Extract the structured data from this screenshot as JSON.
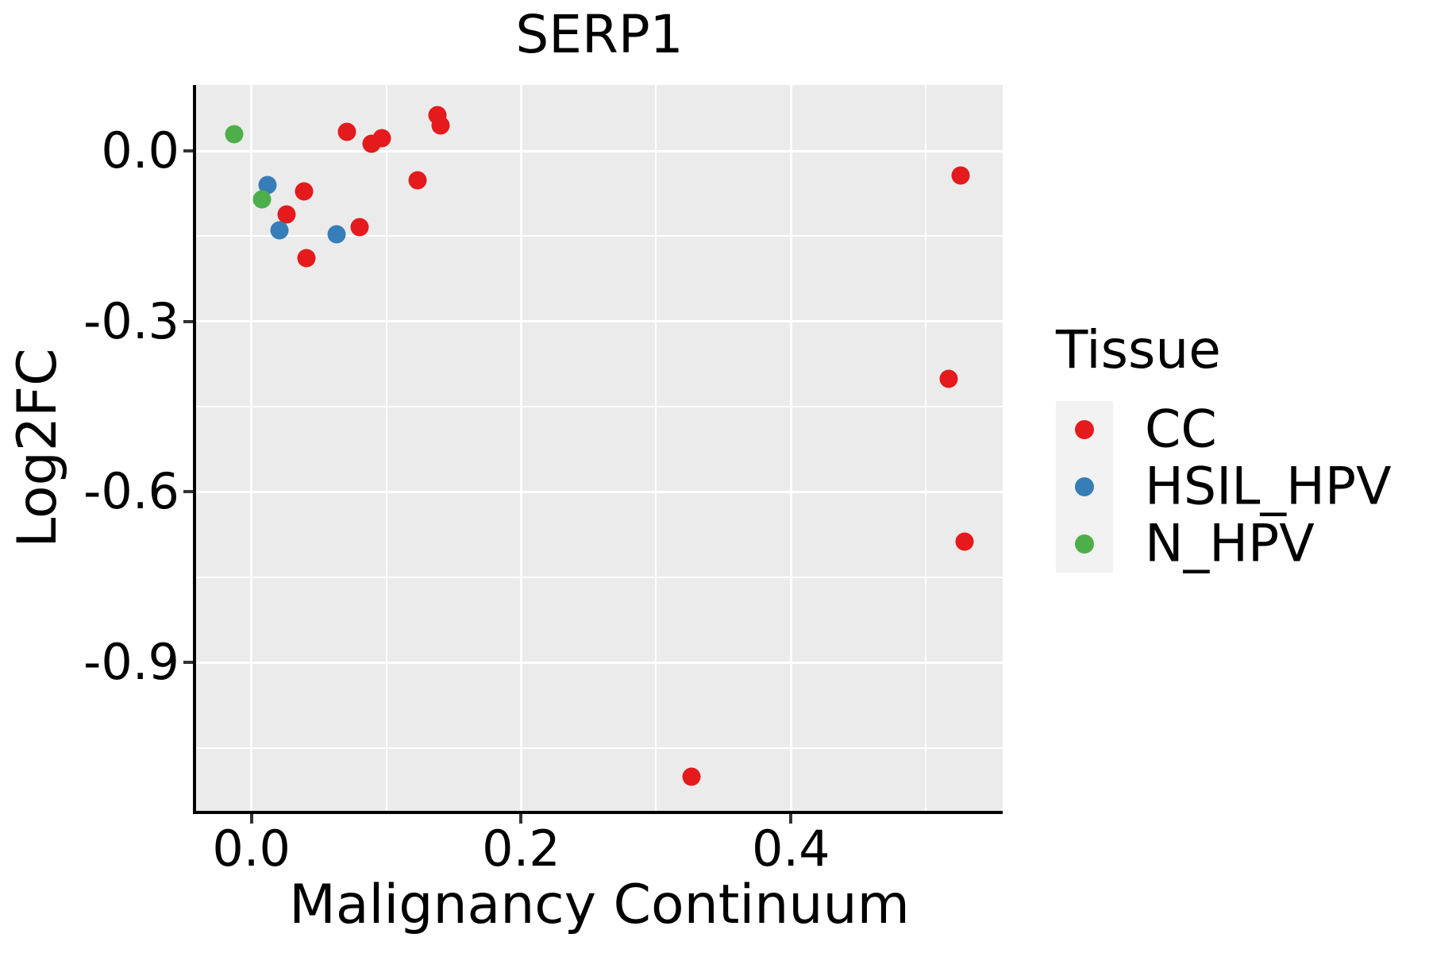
{
  "title": "SERP1",
  "axes": {
    "x": {
      "label": "Malignancy Continuum",
      "ticks": [
        0.0,
        0.2,
        0.4
      ],
      "tick_labels": [
        "0.0",
        "0.2",
        "0.4"
      ],
      "minor_ticks": [
        0.1,
        0.3,
        0.5
      ],
      "range": [
        -0.041,
        0.557
      ]
    },
    "y": {
      "label": "Log2FC",
      "ticks": [
        0.0,
        -0.3,
        -0.6,
        -0.9
      ],
      "tick_labels": [
        "0.0",
        "-0.3",
        "-0.6",
        "-0.9"
      ],
      "minor_ticks": [
        -0.15,
        -0.45,
        -0.75,
        -1.05
      ],
      "range": [
        -1.161,
        0.116
      ]
    }
  },
  "legend": {
    "title": "Tissue",
    "items": [
      {
        "label": "CC",
        "color": "#E41A1C"
      },
      {
        "label": "HSIL_HPV",
        "color": "#377EB8"
      },
      {
        "label": "N_HPV",
        "color": "#4DAF4A"
      }
    ]
  },
  "colors": {
    "panel_bg": "#EBEBEB",
    "grid": "#FFFFFF",
    "legend_key_bg": "#F2F2F2",
    "axis_line": "#000000",
    "tick": "#333333",
    "cc_red": "#E41A1C",
    "hsil_blue": "#377EB8",
    "nhpv_green": "#4DAF4A"
  },
  "chart_data": {
    "type": "scatter",
    "title": "SERP1",
    "xlabel": "Malignancy Continuum",
    "ylabel": "Log2FC",
    "xlim": [
      -0.041,
      0.557
    ],
    "ylim": [
      -1.161,
      0.116
    ],
    "grid": "major-minor-white-on-gray",
    "legend_position": "right",
    "legend_title": "Tissue",
    "series": [
      {
        "name": "CC",
        "color": "#E41A1C",
        "points": [
          [
            0.071,
            0.034
          ],
          [
            0.089,
            0.013
          ],
          [
            0.097,
            0.022
          ],
          [
            0.138,
            0.063
          ],
          [
            0.14,
            0.045
          ],
          [
            0.123,
            -0.052
          ],
          [
            0.039,
            -0.071
          ],
          [
            0.026,
            -0.112
          ],
          [
            0.08,
            -0.134
          ],
          [
            0.041,
            -0.189
          ],
          [
            0.526,
            -0.043
          ],
          [
            0.517,
            -0.401
          ],
          [
            0.529,
            -0.688
          ],
          [
            0.326,
            -1.101
          ]
        ]
      },
      {
        "name": "HSIL_HPV",
        "color": "#377EB8",
        "points": [
          [
            0.012,
            -0.06
          ],
          [
            0.021,
            -0.139
          ],
          [
            0.063,
            -0.147
          ]
        ]
      },
      {
        "name": "N_HPV",
        "color": "#4DAF4A",
        "points": [
          [
            -0.013,
            0.029
          ],
          [
            0.008,
            -0.085
          ]
        ]
      }
    ]
  }
}
